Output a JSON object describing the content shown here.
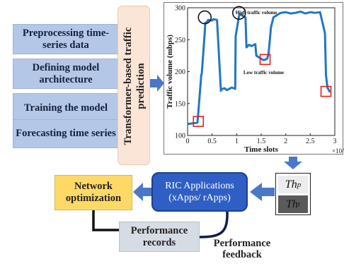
{
  "steps": [
    {
      "label": "Preprocessing time-series data"
    },
    {
      "label": "Defining model architecture"
    },
    {
      "label": "Training the model"
    },
    {
      "label": "Forecasting time series"
    }
  ],
  "transformer_label": "Transformer-based traffic prediction",
  "ric": {
    "line1": "RIC Applications",
    "line2": "(xApps/ rApps)"
  },
  "network_optimization": "Network optimization",
  "performance_records": "Performance records",
  "performance_feedback": "Performance feedback",
  "thresholds": {
    "top": {
      "base": "Th",
      "sub": "p"
    },
    "bottom": {
      "base": "Th",
      "sub": "t"
    }
  },
  "colors": {
    "step_fill": "#b4c7e7",
    "transformer_fill": "#fbe5d6",
    "ric_fill": "#2f5fc4",
    "netopt_fill": "#ffd966",
    "records_fill": "#d6dce4",
    "arrow": "#4a78c8",
    "line": "#1f77c4",
    "marker": "#e02020"
  },
  "chart_data": {
    "type": "line",
    "xlabel": "Time slots",
    "ylabel": "Traffic volume (mbps)",
    "x_multiplier": "×10^6",
    "xlim": [
      0,
      3
    ],
    "ylim": [
      100,
      300
    ],
    "xticks": [
      "0",
      "0.5",
      "1",
      "1.5",
      "2",
      "2.5",
      "3"
    ],
    "yticks": [
      "100",
      "150",
      "200",
      "250",
      "300"
    ],
    "x": [
      0.0,
      0.2,
      0.21,
      0.28,
      0.29,
      0.35,
      0.36,
      0.4,
      0.42,
      0.5,
      0.52,
      0.6,
      0.68,
      0.69,
      0.75,
      0.8,
      0.85,
      0.9,
      0.97,
      0.98,
      1.05,
      1.06,
      1.18,
      1.2,
      1.25,
      1.3,
      1.38,
      1.4,
      1.5,
      1.55,
      1.62,
      1.65,
      1.7,
      1.75,
      1.85,
      1.9,
      2.0,
      2.1,
      2.2,
      2.3,
      2.4,
      2.5,
      2.6,
      2.7,
      2.8,
      2.82,
      2.85,
      2.9
    ],
    "y": [
      118,
      120,
      128,
      195,
      197,
      262,
      276,
      278,
      281,
      280,
      282,
      281,
      170,
      172,
      174,
      171,
      173,
      175,
      173,
      255,
      288,
      290,
      285,
      238,
      242,
      240,
      243,
      225,
      220,
      218,
      220,
      228,
      270,
      285,
      290,
      292,
      293,
      291,
      292,
      294,
      291,
      293,
      292,
      293,
      260,
      195,
      175,
      168
    ],
    "annotations": [
      {
        "text": "High traffic volume",
        "x": 1.4,
        "y": 290
      },
      {
        "text": "Low traffic volume",
        "x": 1.55,
        "y": 196
      }
    ],
    "circles": [
      {
        "x": 0.35,
        "y": 285
      },
      {
        "x": 1.05,
        "y": 292
      }
    ],
    "squares": [
      {
        "x": 0.22,
        "y": 122
      },
      {
        "x": 1.58,
        "y": 219
      },
      {
        "x": 2.82,
        "y": 169
      }
    ],
    "grid": false
  }
}
